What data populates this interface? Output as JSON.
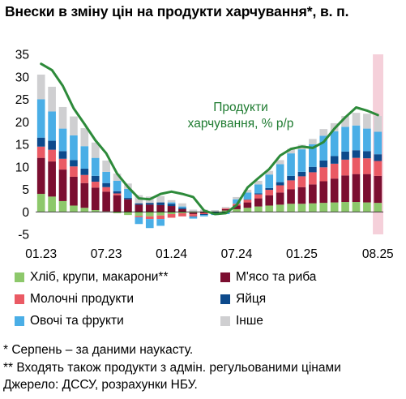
{
  "title": "Внески в зміну цін на продукти харчування*, в. п.",
  "chart_data": {
    "type": "bar",
    "stacked": true,
    "ylim": [
      -5,
      35
    ],
    "y_ticks": [
      35,
      30,
      25,
      20,
      15,
      10,
      5,
      0,
      -5
    ],
    "x_tick_labels": [
      {
        "month": 0,
        "label": "01.23"
      },
      {
        "month": 6,
        "label": "07.23"
      },
      {
        "month": 12,
        "label": "01.24"
      },
      {
        "month": 18,
        "label": "07.24"
      },
      {
        "month": 24,
        "label": "01.25"
      },
      {
        "month": 31,
        "label": "08.25"
      }
    ],
    "months": [
      "01.23",
      "02.23",
      "03.23",
      "04.23",
      "05.23",
      "06.23",
      "07.23",
      "08.23",
      "09.23",
      "10.23",
      "11.23",
      "12.23",
      "01.24",
      "02.24",
      "03.24",
      "04.24",
      "05.24",
      "06.24",
      "07.24",
      "08.24",
      "09.24",
      "10.24",
      "11.24",
      "12.24",
      "01.25",
      "02.25",
      "03.25",
      "04.25",
      "05.25",
      "06.25",
      "07.25",
      "08.25"
    ],
    "series": [
      {
        "name": "Хліб, крупи, макарони**",
        "color": "#8dc86b",
        "values": [
          4.0,
          3.4,
          2.4,
          1.4,
          0.9,
          0.4,
          0.1,
          -0.3,
          -0.7,
          -0.9,
          -1.0,
          -0.8,
          -0.5,
          -0.3,
          -0.2,
          -0.1,
          0.1,
          0.3,
          0.6,
          0.9,
          1.2,
          1.4,
          1.6,
          1.8,
          1.8,
          1.9,
          2.0,
          2.1,
          2.2,
          2.2,
          2.1,
          2.0
        ]
      },
      {
        "name": "М'ясо та риба",
        "color": "#7b0e30",
        "values": [
          8.0,
          7.8,
          7.0,
          6.4,
          5.5,
          5.0,
          4.4,
          3.7,
          2.8,
          1.6,
          1.6,
          1.5,
          1.3,
          0.6,
          -0.3,
          -0.2,
          0.0,
          0.3,
          0.8,
          1.2,
          1.8,
          2.3,
          2.7,
          3.2,
          3.7,
          4.2,
          4.8,
          5.3,
          5.9,
          6.2,
          6.3,
          6.0
        ]
      },
      {
        "name": "Молочні продукти",
        "color": "#ea5a64",
        "values": [
          2.5,
          2.6,
          2.4,
          2.3,
          1.8,
          1.3,
          1.0,
          0.4,
          0.0,
          -0.3,
          -0.6,
          -0.8,
          -0.8,
          -0.7,
          -0.5,
          -0.2,
          0.0,
          0.2,
          0.4,
          0.6,
          0.9,
          1.2,
          1.6,
          2.0,
          2.4,
          2.7,
          3.1,
          3.3,
          3.5,
          3.6,
          3.5,
          3.3
        ]
      },
      {
        "name": "Яйця",
        "color": "#0d4a8c",
        "values": [
          2.0,
          2.0,
          1.7,
          1.4,
          1.4,
          1.3,
          0.9,
          0.5,
          0.3,
          0.3,
          0.4,
          0.6,
          0.5,
          0.3,
          -0.1,
          -0.2,
          -0.3,
          -0.2,
          0.0,
          0.1,
          0.2,
          0.4,
          0.7,
          1.0,
          1.0,
          1.2,
          1.5,
          1.7,
          1.8,
          1.7,
          1.6,
          1.5
        ]
      },
      {
        "name": "Овочі та фрукти",
        "color": "#4aaee6",
        "values": [
          8.5,
          6.5,
          5.0,
          5.5,
          5.0,
          4.0,
          2.5,
          2.3,
          2.0,
          -1.5,
          -2.0,
          -1.5,
          0.3,
          0.3,
          -0.4,
          -0.3,
          -0.4,
          -0.3,
          1.0,
          1.5,
          2.0,
          3.0,
          4.0,
          5.0,
          5.0,
          5.0,
          5.5,
          5.5,
          5.5,
          5.5,
          5.0,
          5.0
        ]
      },
      {
        "name": "Інше",
        "color": "#cfcfd1",
        "values": [
          5.5,
          5.5,
          4.8,
          4.2,
          4.0,
          3.4,
          2.5,
          1.6,
          1.2,
          1.8,
          1.4,
          1.4,
          0.5,
          0.7,
          0.5,
          0.5,
          0.3,
          0.3,
          0.5,
          0.6,
          0.8,
          0.8,
          0.9,
          1.0,
          1.0,
          1.2,
          1.5,
          1.8,
          2.4,
          2.8,
          3.3,
          3.5
        ]
      }
    ],
    "line": {
      "name": "Продукти харчування, % р/р",
      "color": "#2d8a3a",
      "values": [
        32.9,
        31.5,
        28.0,
        23.0,
        19.5,
        15.9,
        13.0,
        8.5,
        5.5,
        3.0,
        2.8,
        4.0,
        4.5,
        4.0,
        3.3,
        0.3,
        -0.5,
        -0.3,
        1.5,
        5.4,
        7.5,
        9.5,
        12.5,
        14.0,
        14.5,
        14.2,
        15.5,
        18.5,
        21.0,
        23.2,
        22.5,
        21.5
      ]
    },
    "annotation": [
      "Продукти",
      "харчування, % р/р"
    ],
    "highlight_month": 31,
    "highlight_color": "#f5d0da"
  },
  "legend": {
    "items": [
      {
        "label": "Хліб, крупи, макарони**",
        "color": "#8dc86b"
      },
      {
        "label": "М'ясо та риба",
        "color": "#7b0e30"
      },
      {
        "label": "Молочні продукти",
        "color": "#ea5a64"
      },
      {
        "label": "Яйця",
        "color": "#0d4a8c"
      },
      {
        "label": "Овочі та фрукти",
        "color": "#4aaee6"
      },
      {
        "label": "Інше",
        "color": "#cfcfd1"
      }
    ]
  },
  "notes": [
    "* Серпень – за даними наукасту.",
    "** Входять також продукти з адмін. регульованими цінами",
    "Джерело: ДССУ, розрахунки НБУ."
  ]
}
